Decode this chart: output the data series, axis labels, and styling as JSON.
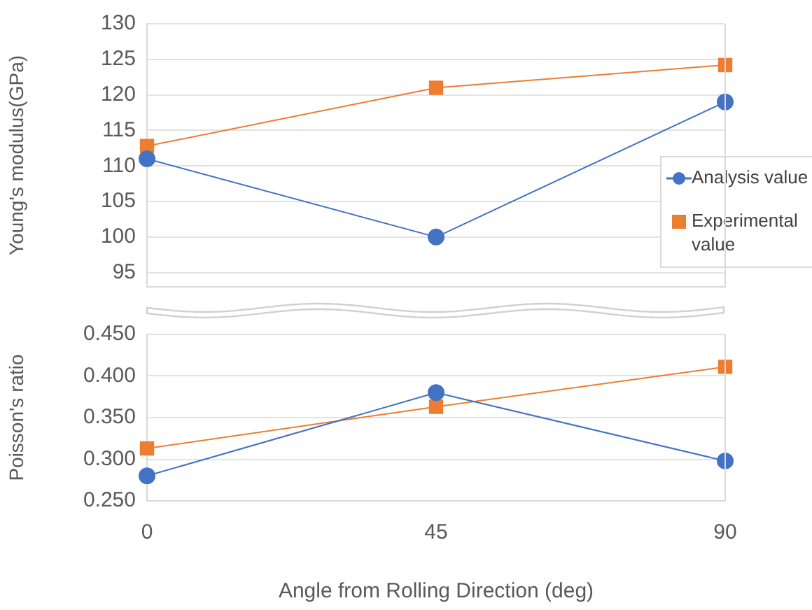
{
  "chart_data": [
    {
      "type": "line",
      "x": [
        0,
        45,
        90
      ],
      "xlim": [
        0,
        90
      ],
      "xticks": [
        0,
        45,
        90
      ],
      "ylabel": "Young's modulus(GPa)",
      "ylim": [
        93,
        130
      ],
      "yticks": [
        95,
        100,
        105,
        110,
        115,
        120,
        125,
        130
      ],
      "grid": "y",
      "legend": "right",
      "tick_labels": "y",
      "series": [
        {
          "name": "Analysis value",
          "color": "#4472c4",
          "marker": "circle",
          "values": [
            111,
            100,
            119
          ]
        },
        {
          "name": "Experimental value",
          "color": "#ed7d31",
          "marker": "square",
          "values": [
            112.8,
            121,
            124.2
          ]
        }
      ]
    },
    {
      "type": "line",
      "x": [
        0,
        45,
        90
      ],
      "xlim": [
        0,
        90
      ],
      "xticks": [
        0,
        45,
        90
      ],
      "xlabel": "Angle from Rolling Direction (deg)",
      "ylabel": "Poisson's ratio",
      "ylim": [
        0.25,
        0.45
      ],
      "yticks": [
        {
          "value": 0.25,
          "label": "0.250"
        },
        {
          "value": 0.3,
          "label": "0.300"
        },
        {
          "value": 0.35,
          "label": "0.350"
        },
        {
          "value": 0.4,
          "label": "0.400"
        },
        {
          "value": 0.45,
          "label": "0.450"
        }
      ],
      "grid": "y",
      "series": [
        {
          "color": "#4472c4",
          "marker": "circle",
          "values": [
            0.28,
            0.38,
            0.298
          ]
        },
        {
          "color": "#ed7d31",
          "marker": "square",
          "values": [
            0.313,
            0.363,
            0.411
          ]
        }
      ]
    }
  ]
}
